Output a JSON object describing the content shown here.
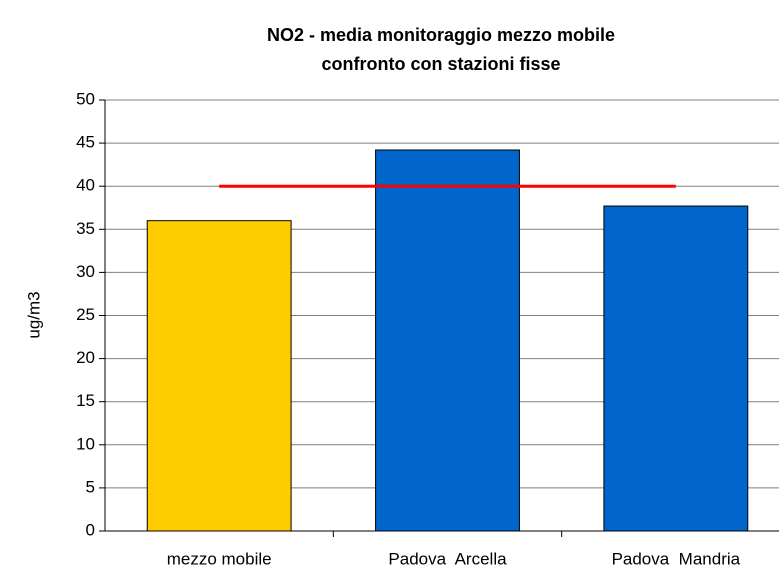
{
  "chart_data": {
    "type": "bar",
    "title": [
      "NO2 - media monitoraggio mezzo mobile",
      "confronto con stazioni fisse"
    ],
    "y_label": "ug/m3",
    "categories": [
      "mezzo mobile",
      "Padova  Arcella",
      "Padova  Mandria"
    ],
    "values": [
      36,
      44.2,
      37.7
    ],
    "colors": [
      "#ffcc00",
      "#0066cc",
      "#0066cc"
    ],
    "reference_line": {
      "value": 40,
      "color": "#ff0000"
    },
    "ylim": [
      0,
      50
    ],
    "yticks": [
      0,
      5,
      10,
      15,
      20,
      25,
      30,
      35,
      40,
      45,
      50
    ],
    "grid": true
  }
}
